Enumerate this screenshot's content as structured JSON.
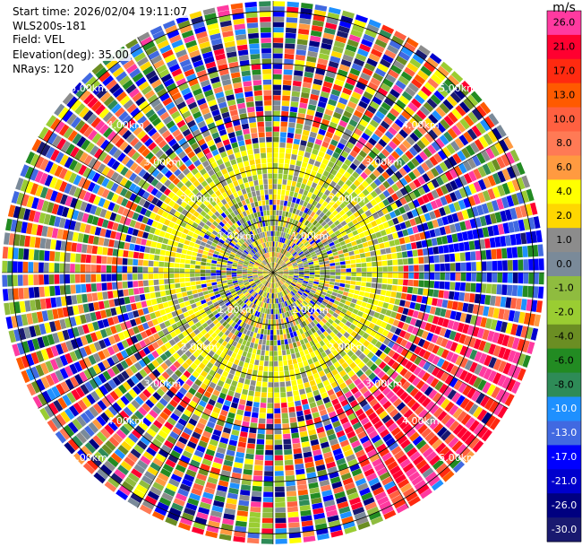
{
  "header": {
    "start_time": "Start time: 2026/02/04 19:11:07",
    "instrument": "WLS200s-181",
    "field": "Field: VEL",
    "elevation": "Elevation(deg): 35.00",
    "nrays": "NRays: 120"
  },
  "colorbar": {
    "unit": "m/s",
    "levels": [
      {
        "label": "26.0",
        "color": "#ff3aa0"
      },
      {
        "label": "21.0",
        "color": "#ff0030"
      },
      {
        "label": "17.0",
        "color": "#ff2a10"
      },
      {
        "label": "13.0",
        "color": "#ff5a00"
      },
      {
        "label": "10.0",
        "color": "#ff6040"
      },
      {
        "label": "8.0",
        "color": "#ff7a55"
      },
      {
        "label": "6.0",
        "color": "#ff9a40"
      },
      {
        "label": "4.0",
        "color": "#ffff00"
      },
      {
        "label": "2.0",
        "color": "#ffd700"
      },
      {
        "label": "1.0",
        "color": "#8c8c8c"
      },
      {
        "label": "0.0",
        "color": "#7a8a99"
      },
      {
        "label": "-1.0",
        "color": "#8fbc3f"
      },
      {
        "label": "-2.0",
        "color": "#9acd32"
      },
      {
        "label": "-4.0",
        "color": "#6b8e23"
      },
      {
        "label": "-6.0",
        "color": "#228b22"
      },
      {
        "label": "-8.0",
        "color": "#2e8b57"
      },
      {
        "label": "-10.0",
        "color": "#1e90ff"
      },
      {
        "label": "-13.0",
        "color": "#4169e1"
      },
      {
        "label": "-17.0",
        "color": "#0000ff"
      },
      {
        "label": "-21.0",
        "color": "#0000cd"
      },
      {
        "label": "-26.0",
        "color": "#000080"
      },
      {
        "label": "-30.0",
        "color": "#191970"
      }
    ]
  },
  "chart_data": {
    "type": "heatmap",
    "projection": "polar PPI",
    "field": "VEL",
    "units": "m/s",
    "nrays": 120,
    "elevation_deg": 35.0,
    "max_range_km": 5.2,
    "range_rings_km": [
      1,
      2,
      3,
      4,
      5
    ],
    "ring_labels": [
      "1.00km",
      "2.00km",
      "3.00km",
      "4.00km",
      "5.00km"
    ],
    "radials_deg": [
      0,
      30,
      60,
      90,
      120,
      150,
      180,
      210,
      240,
      270,
      300,
      330
    ],
    "pattern": {
      "inner_core": "mixed small velocities (yellow/orange/grey/green) within ~1.5 km",
      "annulus_1.5_2.5km": "yellow ~+4 m/s dominant",
      "outer": "noisy, all colors, beyond ~2.5 km",
      "east_band": "blue -17 m/s band at azimuth ~75-90 deg, 3-5 km",
      "southeast": "red/pink +21..+26 m/s at azimuth ~110-150 deg, 3-5 km"
    }
  }
}
